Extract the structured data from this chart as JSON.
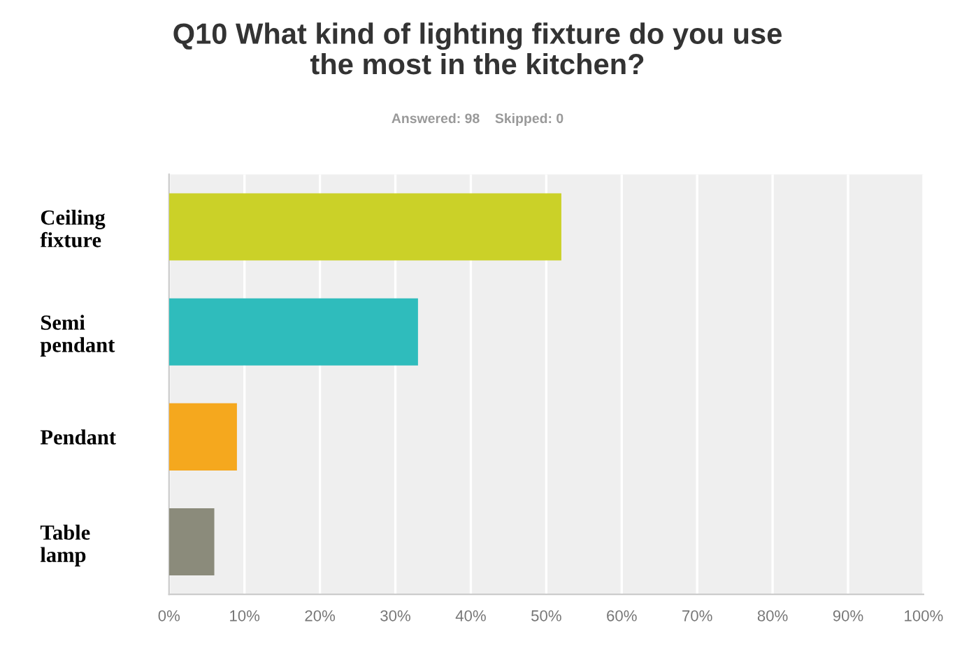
{
  "chart_data": {
    "type": "bar",
    "orientation": "horizontal",
    "title": "Q10 What kind of lighting fixture do you use\nthe most in the kitchen?",
    "subtitle": "Answered: 98    Skipped: 0",
    "categories": [
      "Ceiling\nfixture",
      "Semi\npendant",
      "Pendant",
      "Table\nlamp"
    ],
    "values": [
      52,
      33,
      9,
      6
    ],
    "colors": [
      "#cbd128",
      "#2fbcbc",
      "#f5a81e",
      "#8b8b7b"
    ],
    "xlim": [
      0,
      100
    ],
    "xticks": [
      {
        "value": 0,
        "label": "0%"
      },
      {
        "value": 10,
        "label": "10%"
      },
      {
        "value": 20,
        "label": "20%"
      },
      {
        "value": 30,
        "label": "30%"
      },
      {
        "value": 40,
        "label": "40%"
      },
      {
        "value": 50,
        "label": "50%"
      },
      {
        "value": 60,
        "label": "60%"
      },
      {
        "value": 70,
        "label": "70%"
      },
      {
        "value": 80,
        "label": "80%"
      },
      {
        "value": 90,
        "label": "90%"
      },
      {
        "value": 100,
        "label": "100%"
      }
    ],
    "grid": "x"
  }
}
